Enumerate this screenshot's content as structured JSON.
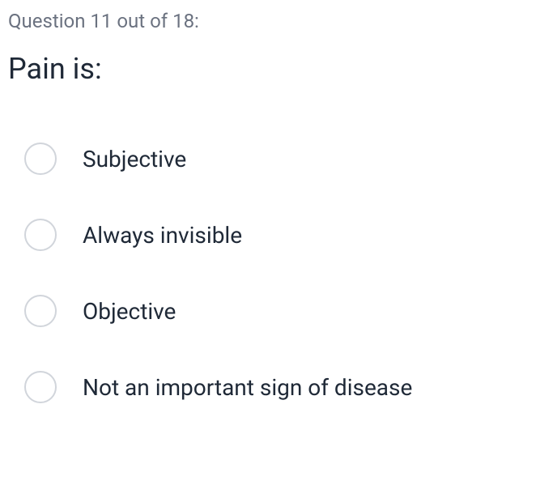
{
  "counter": {
    "text": "Question 11 out of 18:"
  },
  "question": {
    "text": "Pain is:"
  },
  "options": [
    {
      "label": "Subjective"
    },
    {
      "label": "Always invisible"
    },
    {
      "label": "Objective"
    },
    {
      "label": "Not an important sign of disease"
    }
  ],
  "colors": {
    "counter_text": "#6b7280",
    "question_text": "#1f2937",
    "option_text": "#1f2937",
    "radio_border": "#d1d5db",
    "background": "#ffffff"
  },
  "typography": {
    "counter_fontsize": 24,
    "question_fontsize": 36,
    "option_fontsize": 28
  }
}
